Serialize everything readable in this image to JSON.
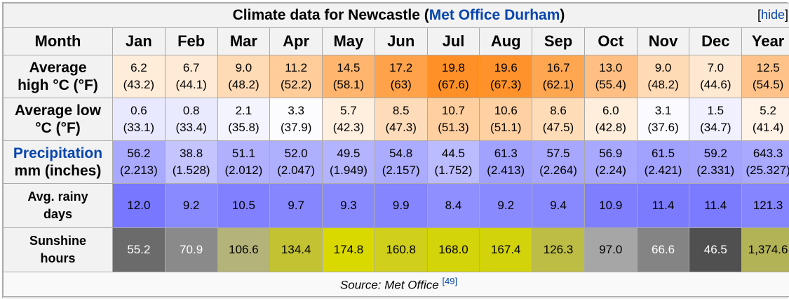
{
  "title": {
    "prefix": "Climate data for Newcastle (",
    "link": "Met Office Durham",
    "suffix": ")",
    "hide_label": "[",
    "hide_link": "hide",
    "hide_close": "]"
  },
  "header": {
    "month_label": "Month",
    "months": [
      "Jan",
      "Feb",
      "Mar",
      "Apr",
      "May",
      "Jun",
      "Jul",
      "Aug",
      "Sep",
      "Oct",
      "Nov",
      "Dec",
      "Year"
    ]
  },
  "rows": {
    "high": {
      "label_line1": "Average",
      "label_line2": "high °C (°F)",
      "values": [
        {
          "c": "6.2",
          "f": "(43.2)",
          "bg": "#ffecd9"
        },
        {
          "c": "6.7",
          "f": "(44.1)",
          "bg": "#ffead5"
        },
        {
          "c": "9.0",
          "f": "(48.2)",
          "bg": "#ffdab4"
        },
        {
          "c": "11.2",
          "f": "(52.2)",
          "bg": "#ffcc9a"
        },
        {
          "c": "14.5",
          "f": "(58.1)",
          "bg": "#ffb56d"
        },
        {
          "c": "17.2",
          "f": "(63)",
          "bg": "#ffa24a"
        },
        {
          "c": "19.8",
          "f": "(67.6)",
          "bg": "#ff9028"
        },
        {
          "c": "19.6",
          "f": "(67.3)",
          "bg": "#ff922b"
        },
        {
          "c": "16.7",
          "f": "(62.1)",
          "bg": "#ffa651"
        },
        {
          "c": "13.0",
          "f": "(55.4)",
          "bg": "#ffbf82"
        },
        {
          "c": "9.0",
          "f": "(48.2)",
          "bg": "#ffdab4"
        },
        {
          "c": "7.0",
          "f": "(44.6)",
          "bg": "#ffe8d1"
        },
        {
          "c": "12.5",
          "f": "(54.5)",
          "bg": "#ffc38a"
        }
      ]
    },
    "low": {
      "label_line1": "Average low",
      "label_line2": "°C (°F)",
      "values": [
        {
          "c": "0.6",
          "f": "(33.1)",
          "bg": "#e8e8ff"
        },
        {
          "c": "0.8",
          "f": "(33.4)",
          "bg": "#eaeaff"
        },
        {
          "c": "2.1",
          "f": "(35.8)",
          "bg": "#f4f4ff"
        },
        {
          "c": "3.3",
          "f": "(37.9)",
          "bg": "#fcfcff"
        },
        {
          "c": "5.7",
          "f": "(42.3)",
          "bg": "#ffefdf"
        },
        {
          "c": "8.5",
          "f": "(47.3)",
          "bg": "#ffdcb9"
        },
        {
          "c": "10.7",
          "f": "(51.3)",
          "bg": "#ffcfa0"
        },
        {
          "c": "10.6",
          "f": "(51.1)",
          "bg": "#ffd0a1"
        },
        {
          "c": "8.6",
          "f": "(47.5)",
          "bg": "#ffdcb8"
        },
        {
          "c": "6.0",
          "f": "(42.8)",
          "bg": "#ffeedc"
        },
        {
          "c": "3.1",
          "f": "(37.6)",
          "bg": "#fafaff"
        },
        {
          "c": "1.5",
          "f": "(34.7)",
          "bg": "#f0f0ff"
        },
        {
          "c": "5.2",
          "f": "(41.4)",
          "bg": "#fff2e6"
        }
      ]
    },
    "prec": {
      "label_line1": "Precipitation",
      "label_line2": "mm (inches)",
      "values": [
        {
          "c": "56.2",
          "f": "(2.213)",
          "bg": "#a9a9ff"
        },
        {
          "c": "38.8",
          "f": "(1.528)",
          "bg": "#c4c4ff"
        },
        {
          "c": "51.1",
          "f": "(2.012)",
          "bg": "#b0b0ff"
        },
        {
          "c": "52.0",
          "f": "(2.047)",
          "bg": "#afafff"
        },
        {
          "c": "49.5",
          "f": "(1.949)",
          "bg": "#b3b3ff"
        },
        {
          "c": "54.8",
          "f": "(2.157)",
          "bg": "#ababff"
        },
        {
          "c": "44.5",
          "f": "(1.752)",
          "bg": "#bbbbff"
        },
        {
          "c": "61.3",
          "f": "(2.413)",
          "bg": "#a1a1ff"
        },
        {
          "c": "57.5",
          "f": "(2.264)",
          "bg": "#a7a7ff"
        },
        {
          "c": "56.9",
          "f": "(2.24)",
          "bg": "#a8a8ff"
        },
        {
          "c": "61.5",
          "f": "(2.421)",
          "bg": "#a1a1ff"
        },
        {
          "c": "59.2",
          "f": "(2.331)",
          "bg": "#a4a4ff"
        },
        {
          "c": "643.3",
          "f": "(25.327)",
          "bg": "#a9a9ff"
        }
      ]
    },
    "rain": {
      "label_line1": "Avg. rainy",
      "label_line2": "days",
      "values": [
        {
          "c": "12.0",
          "bg": "#7777ff"
        },
        {
          "c": "9.2",
          "bg": "#8a8aff"
        },
        {
          "c": "10.5",
          "bg": "#8181ff"
        },
        {
          "c": "9.7",
          "bg": "#8686ff"
        },
        {
          "c": "9.3",
          "bg": "#8989ff"
        },
        {
          "c": "9.9",
          "bg": "#8585ff"
        },
        {
          "c": "8.4",
          "bg": "#8f8fff"
        },
        {
          "c": "9.2",
          "bg": "#8a8aff"
        },
        {
          "c": "9.4",
          "bg": "#8989ff"
        },
        {
          "c": "10.9",
          "bg": "#7e7eff"
        },
        {
          "c": "11.4",
          "bg": "#7b7bff"
        },
        {
          "c": "11.4",
          "bg": "#7b7bff"
        },
        {
          "c": "121.3",
          "bg": "#8585ff"
        }
      ]
    },
    "sun": {
      "label_line1": "Sunshine",
      "label_line2": "hours",
      "values": [
        {
          "c": "55.2",
          "bg": "#6b6b6b",
          "fg": "#ffffff"
        },
        {
          "c": "70.9",
          "bg": "#8a8a8a",
          "fg": "#ffffff"
        },
        {
          "c": "106.6",
          "bg": "#b3b37a",
          "fg": "#000000"
        },
        {
          "c": "134.4",
          "bg": "#c2c232",
          "fg": "#000000"
        },
        {
          "c": "174.8",
          "bg": "#d9d900",
          "fg": "#000000"
        },
        {
          "c": "160.8",
          "bg": "#cfcf1c",
          "fg": "#000000"
        },
        {
          "c": "168.0",
          "bg": "#d4d40a",
          "fg": "#000000"
        },
        {
          "c": "167.4",
          "bg": "#d3d30c",
          "fg": "#000000"
        },
        {
          "c": "126.3",
          "bg": "#bdbd45",
          "fg": "#000000"
        },
        {
          "c": "97.0",
          "bg": "#a6a6a6",
          "fg": "#000000"
        },
        {
          "c": "66.6",
          "bg": "#848484",
          "fg": "#ffffff"
        },
        {
          "c": "46.5",
          "bg": "#505050",
          "fg": "#ffffff"
        },
        {
          "c": "1,374.6",
          "bg": "#b2b256",
          "fg": "#000000"
        }
      ]
    }
  },
  "source": {
    "text": "Source: Met Office ",
    "ref": "[49]"
  },
  "colors": {
    "link": "#0645ad",
    "border": "#aaaaaa",
    "header_bg": "#f2f2f2"
  }
}
